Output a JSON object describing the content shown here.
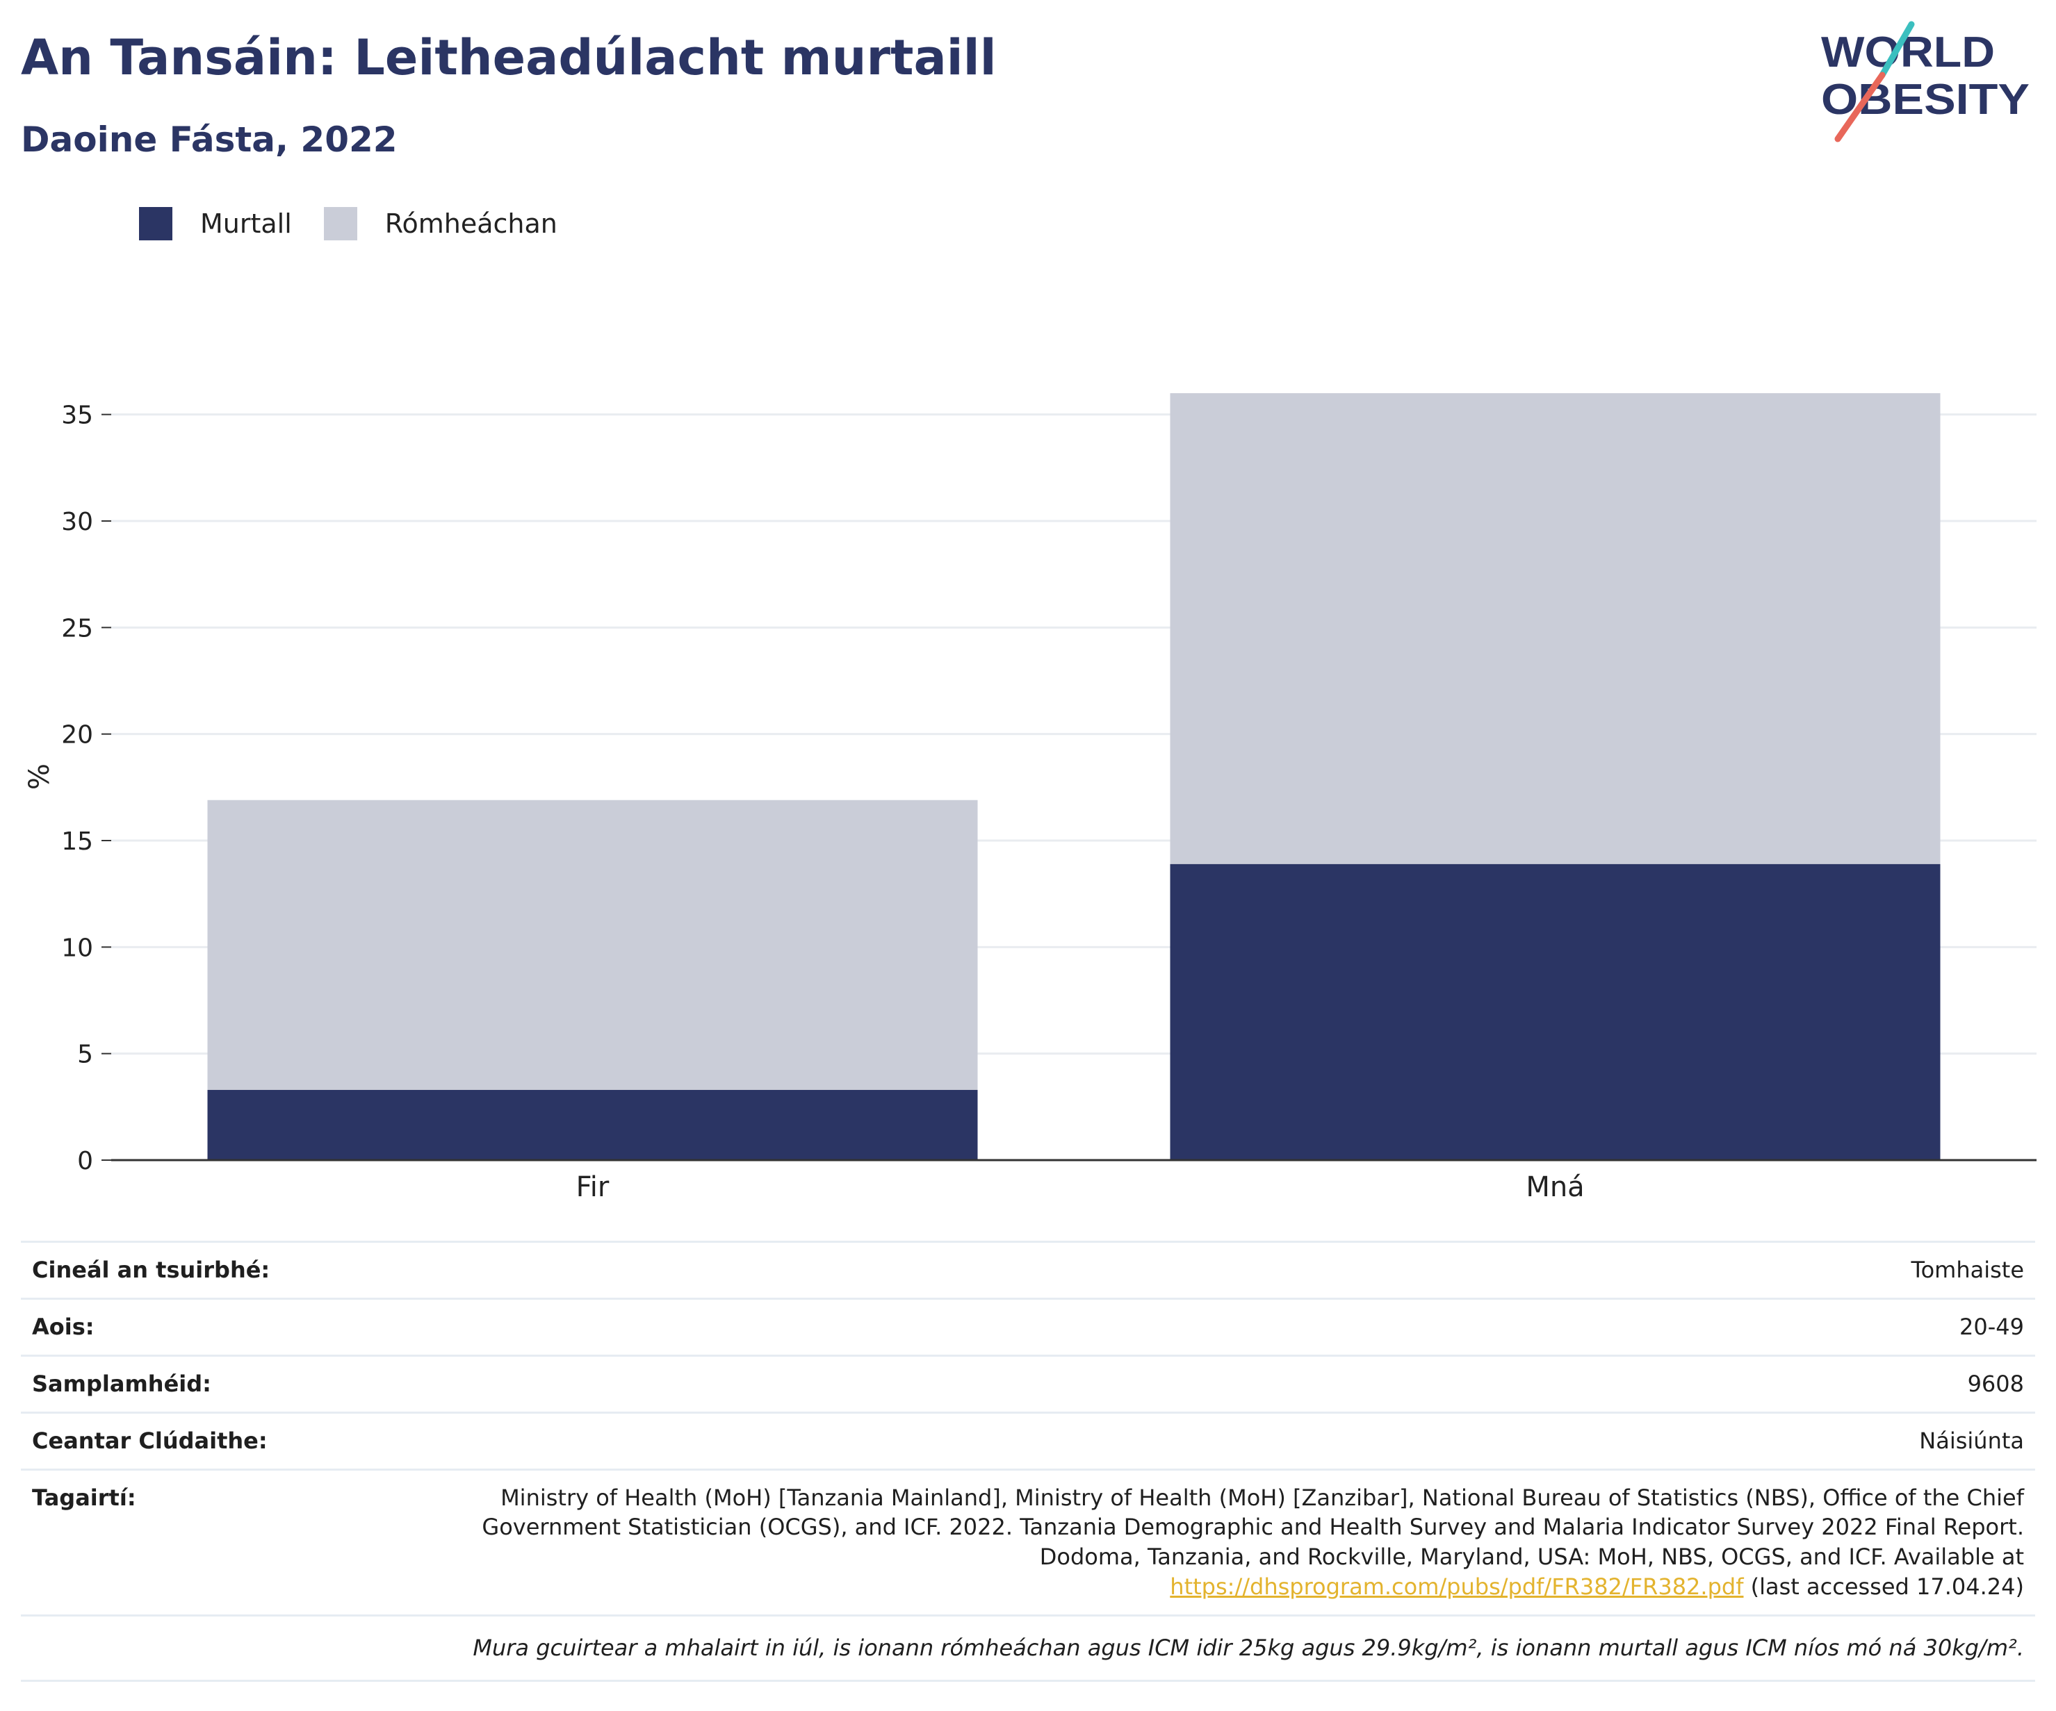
{
  "header": {
    "title": "An Tansáin: Leitheadúlacht murtaill",
    "subtitle": "Daoine Fásta, 2022"
  },
  "logo": {
    "line1": "WORLD",
    "line2": "OBESITY",
    "colors": {
      "text": "#2b3564",
      "slash_coral": "#e8675a",
      "slash_teal": "#3bbfbf"
    }
  },
  "legend": {
    "items": [
      {
        "label": "Murtall",
        "color": "#2b3564"
      },
      {
        "label": "Rómheáchan",
        "color": "#cacdd8"
      }
    ]
  },
  "chart_data": {
    "type": "bar",
    "stacked": true,
    "title": "An Tansáin: Leitheadúlacht murtaill",
    "subtitle": "Daoine Fásta, 2022",
    "categories": [
      "Fir",
      "Mná"
    ],
    "series": [
      {
        "name": "Murtall",
        "values": [
          3.3,
          13.9
        ],
        "color": "#2b3564"
      },
      {
        "name": "Rómheáchan",
        "values": [
          13.6,
          22.1
        ],
        "color": "#cacdd8"
      }
    ],
    "xlabel": "",
    "ylabel": "%",
    "ylim": [
      0,
      37.5
    ],
    "yticks": [
      0,
      5,
      10,
      15,
      20,
      25,
      30,
      35
    ],
    "grid": true,
    "legend_position": "top-left"
  },
  "info": {
    "rows": [
      {
        "label": "Cineál an tsuirbhé:",
        "value": "Tomhaiste"
      },
      {
        "label": "Aois:",
        "value": "20-49"
      },
      {
        "label": "Samplamhéid:",
        "value": "9608"
      },
      {
        "label": "Ceantar Clúdaithe:",
        "value": "Náisiúnta"
      }
    ],
    "references": {
      "label": "Tagairtí:",
      "text": "Ministry of Health (MoH) [Tanzania Mainland], Ministry of Health (MoH) [Zanzibar], National Bureau of Statistics (NBS), Office of the Chief Government Statistician (OCGS), and ICF. 2022. Tanzania Demographic and Health Survey and Malaria Indicator Survey 2022 Final Report. Dodoma, Tanzania, and Rockville, Maryland, USA: MoH, NBS, OCGS, and ICF. Available at",
      "link": "https://dhsprogram.com/pubs/pdf/FR382/FR382.pdf",
      "suffix": "(last accessed 17.04.24)"
    },
    "footnote": "Mura gcuirtear a mhalairt in iúl, is ionann rómheáchan agus ICM idir 25kg agus 29.9kg/m², is ionann murtall agus ICM níos mó ná 30kg/m²."
  }
}
